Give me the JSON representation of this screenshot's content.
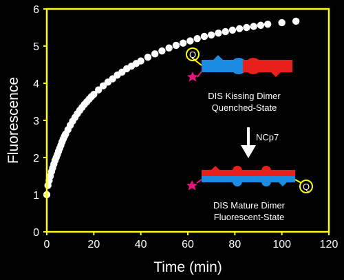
{
  "chart_data": {
    "type": "scatter",
    "title": "",
    "xlabel": "Time (min)",
    "ylabel": "Fluorescence",
    "xlim": [
      0,
      120
    ],
    "ylim": [
      0,
      6
    ],
    "xticks": [
      "0",
      "20",
      "40",
      "60",
      "80",
      "100",
      "120"
    ],
    "yticks": [
      "0",
      "1",
      "2",
      "3",
      "4",
      "5",
      "6"
    ],
    "grid": false,
    "frame_color": "#ffff00",
    "background": "#000000",
    "marker_color": "#ffffff",
    "series": [
      {
        "x": [
          0,
          0.5,
          1,
          1.5,
          2,
          2.5,
          3,
          3.5,
          4,
          4.5,
          5,
          5.5,
          6,
          6.5,
          7,
          7.5,
          8,
          9,
          10,
          11,
          12,
          13,
          14,
          15,
          16,
          17,
          18,
          19,
          20,
          22,
          24,
          26,
          28,
          30,
          32,
          34,
          36,
          38,
          40,
          43,
          46,
          49,
          52,
          55,
          58,
          61,
          64,
          67,
          70,
          73,
          76,
          79,
          82,
          85,
          88,
          91,
          94,
          100,
          106
        ],
        "y": [
          1.0,
          1.25,
          1.38,
          1.5,
          1.62,
          1.72,
          1.82,
          1.92,
          2.0,
          2.08,
          2.17,
          2.25,
          2.33,
          2.42,
          2.5,
          2.57,
          2.63,
          2.75,
          2.87,
          2.98,
          3.08,
          3.18,
          3.27,
          3.35,
          3.43,
          3.5,
          3.57,
          3.64,
          3.7,
          3.82,
          3.93,
          4.03,
          4.12,
          4.22,
          4.3,
          4.39,
          4.46,
          4.53,
          4.6,
          4.7,
          4.79,
          4.87,
          4.95,
          5.02,
          5.08,
          5.14,
          5.2,
          5.26,
          5.3,
          5.35,
          5.39,
          5.43,
          5.47,
          5.5,
          5.53,
          5.56,
          5.59,
          5.63,
          5.67
        ]
      }
    ],
    "annotations": [
      {
        "id": "kissing-line1",
        "text": "DIS Kissing Dimer"
      },
      {
        "id": "kissing-line2",
        "text": "Quenched-State"
      },
      {
        "id": "arrow-label",
        "text": "NCp7"
      },
      {
        "id": "mature-line1",
        "text": "DIS Mature Dimer"
      },
      {
        "id": "mature-line2",
        "text": "Fluorescent-State"
      }
    ],
    "quencher_label": "Q"
  },
  "colors": {
    "blue": "#1c8ce3",
    "red": "#e8201c",
    "star": "#e0167a",
    "quencher": "#ffff00"
  }
}
